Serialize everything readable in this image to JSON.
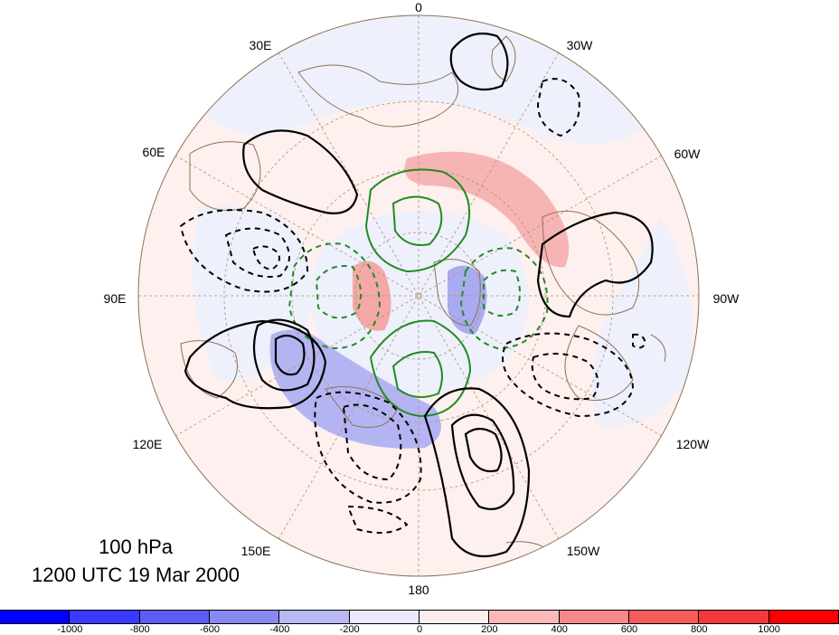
{
  "map": {
    "projection": "north-polar-stereographic",
    "longitude_labels": [
      "0",
      "30W",
      "60W",
      "90W",
      "120W",
      "150W",
      "180",
      "150E",
      "120E",
      "90E",
      "60E",
      "30E"
    ],
    "caption": {
      "level": "100 hPa",
      "time": "1200 UTC 19 Mar 2000"
    },
    "contours": {
      "positive_color": "#000000",
      "negative_style": "dashed",
      "zonal_mean_color": "#228b22"
    },
    "colors": {
      "coastline": "#8b7355",
      "graticule": "#b09070",
      "disc_outline": "#8b7355"
    }
  },
  "colorbar": {
    "ticks": [
      "-1000",
      "-800",
      "-600",
      "-400",
      "-200",
      "0",
      "200",
      "400",
      "600",
      "800",
      "1000"
    ],
    "colors": [
      "#0000ff",
      "#3a3aff",
      "#5c5cf5",
      "#8888f0",
      "#b8b8f5",
      "#eaeafc",
      "#fdeeee",
      "#fbb8b8",
      "#f78888",
      "#f45c5c",
      "#f23a3a",
      "#ff0000"
    ]
  }
}
